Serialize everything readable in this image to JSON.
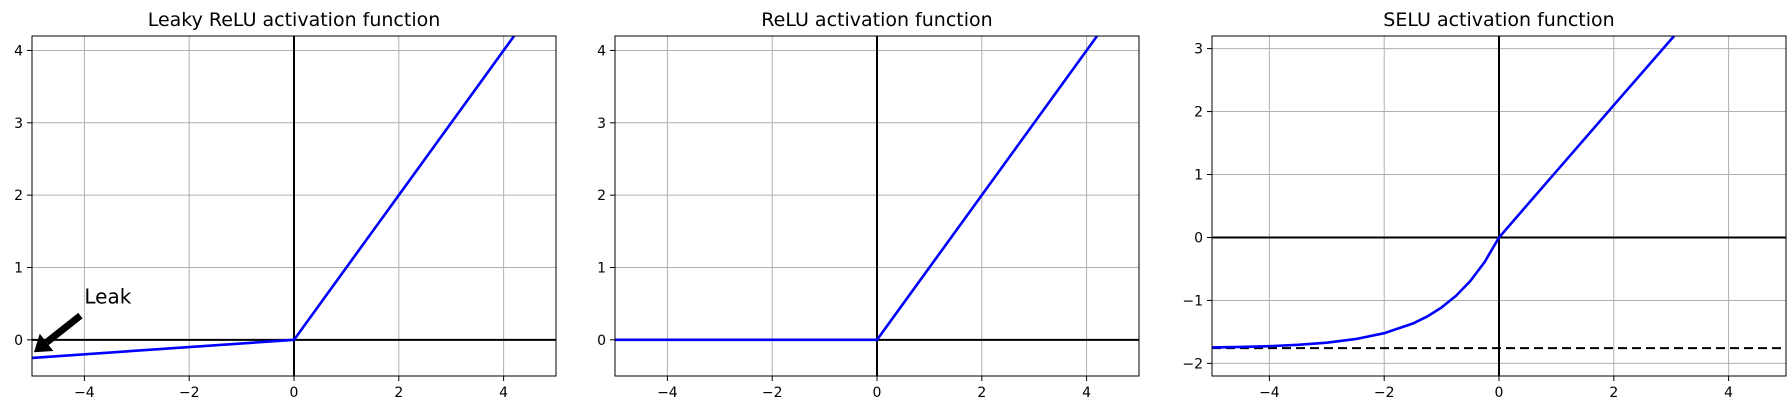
{
  "chart_data": [
    {
      "type": "line",
      "title": "Leaky ReLU activation function",
      "xlabel": "",
      "ylabel": "",
      "xlim": [
        -5,
        5
      ],
      "ylim": [
        -0.5,
        4.2
      ],
      "xticks": [
        -4,
        -2,
        0,
        2,
        4
      ],
      "yticks": [
        0,
        1,
        2,
        3,
        4
      ],
      "xtick_labels": [
        "−4",
        "−2",
        "0",
        "2",
        "4"
      ],
      "ytick_labels": [
        "0",
        "1",
        "2",
        "3",
        "4"
      ],
      "grid": true,
      "axes_lines": {
        "hline_y": 0,
        "vline_x": 0
      },
      "series": [
        {
          "color": "#0000ff",
          "x": [
            -5,
            0,
            4.2
          ],
          "y": [
            -0.25,
            0,
            4.2
          ]
        }
      ],
      "annotation": {
        "text": "Leak",
        "xy": [
          -5,
          -0.2
        ],
        "xytext": [
          -4,
          0.5
        ],
        "arrow": true
      }
    },
    {
      "type": "line",
      "title": "ReLU activation function",
      "xlabel": "",
      "ylabel": "",
      "xlim": [
        -5,
        5
      ],
      "ylim": [
        -0.5,
        4.2
      ],
      "xticks": [
        -4,
        -2,
        0,
        2,
        4
      ],
      "yticks": [
        0,
        1,
        2,
        3,
        4
      ],
      "xtick_labels": [
        "−4",
        "−2",
        "0",
        "2",
        "4"
      ],
      "ytick_labels": [
        "0",
        "1",
        "2",
        "3",
        "4"
      ],
      "grid": true,
      "axes_lines": {
        "hline_y": 0,
        "vline_x": 0
      },
      "series": [
        {
          "color": "#0000ff",
          "x": [
            -5,
            0,
            4.2
          ],
          "y": [
            0,
            0,
            4.2
          ]
        }
      ]
    },
    {
      "type": "line",
      "title": "SELU activation function",
      "xlabel": "",
      "ylabel": "",
      "xlim": [
        -5,
        5
      ],
      "ylim": [
        -2.2,
        3.2
      ],
      "xticks": [
        -4,
        -2,
        0,
        2,
        4
      ],
      "yticks": [
        -2,
        -1,
        0,
        1,
        2,
        3
      ],
      "xtick_labels": [
        "−4",
        "−2",
        "0",
        "2",
        "4"
      ],
      "ytick_labels": [
        "−2",
        "−1",
        "0",
        "1",
        "2",
        "3"
      ],
      "grid": true,
      "axes_lines": {
        "hline_y": 0,
        "vline_x": 0,
        "dashed_hline_y": -1.758
      },
      "series": [
        {
          "color": "#0000ff",
          "x": [
            -5,
            -4.5,
            -4,
            -3.5,
            -3,
            -2.5,
            -2,
            -1.5,
            -1.25,
            -1,
            -0.75,
            -0.5,
            -0.25,
            0,
            1,
            2,
            3.05
          ],
          "y": [
            -1.746,
            -1.739,
            -1.726,
            -1.705,
            -1.671,
            -1.614,
            -1.52,
            -1.366,
            -1.254,
            -1.111,
            -0.927,
            -0.692,
            -0.389,
            0,
            1.051,
            2.101,
            3.2
          ]
        }
      ]
    }
  ]
}
